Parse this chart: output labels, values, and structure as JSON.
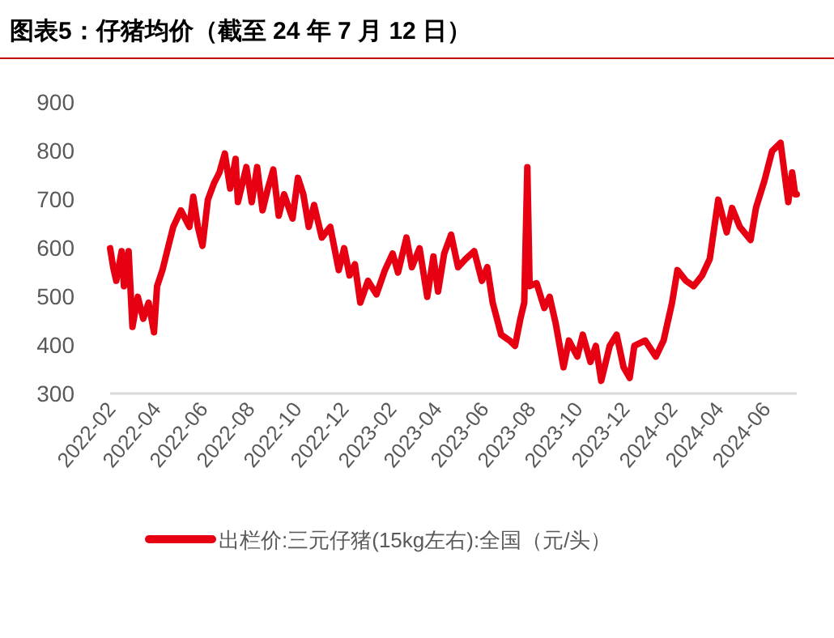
{
  "chart_data": {
    "type": "line",
    "title": "图表5：仔猪均价（截至 24 年 7 月 12 日）",
    "xlim": [
      "2022-02-01",
      "2024-07-12"
    ],
    "ylim": [
      300,
      900
    ],
    "yticks": [
      300,
      400,
      500,
      600,
      700,
      800,
      900
    ],
    "xticks": [
      "2022-02",
      "2022-04",
      "2022-06",
      "2022-08",
      "2022-10",
      "2022-12",
      "2023-02",
      "2023-04",
      "2023-06",
      "2023-08",
      "2023-10",
      "2023-12",
      "2024-02",
      "2024-04",
      "2024-06"
    ],
    "grid": false,
    "legend": "bottom",
    "marker": "none",
    "line_style": "solid",
    "series": [
      {
        "name": "出栏价:三元仔猪(15kg左右):全国（元/头）",
        "color": "#e60012",
        "x": [
          "2022-02-01",
          "2022-02-05",
          "2022-02-09",
          "2022-02-16",
          "2022-02-19",
          "2022-02-25",
          "2022-03-02",
          "2022-03-09",
          "2022-03-16",
          "2022-03-23",
          "2022-03-30",
          "2022-04-03",
          "2022-04-10",
          "2022-04-17",
          "2022-04-24",
          "2022-05-04",
          "2022-05-15",
          "2022-05-20",
          "2022-05-26",
          "2022-06-01",
          "2022-06-08",
          "2022-06-16",
          "2022-06-23",
          "2022-06-30",
          "2022-07-07",
          "2022-07-14",
          "2022-07-17",
          "2022-07-28",
          "2022-08-04",
          "2022-08-11",
          "2022-08-18",
          "2022-08-25",
          "2022-09-01",
          "2022-09-08",
          "2022-09-15",
          "2022-09-26",
          "2022-10-03",
          "2022-10-10",
          "2022-10-17",
          "2022-10-24",
          "2022-11-03",
          "2022-11-14",
          "2022-11-25",
          "2022-12-02",
          "2022-12-09",
          "2022-12-16",
          "2022-12-23",
          "2023-01-02",
          "2023-01-13",
          "2023-01-24",
          "2023-02-03",
          "2023-02-10",
          "2023-02-21",
          "2023-02-28",
          "2023-03-10",
          "2023-03-20",
          "2023-03-28",
          "2023-04-03",
          "2023-04-11",
          "2023-04-20",
          "2023-04-29",
          "2023-05-09",
          "2023-05-20",
          "2023-05-30",
          "2023-06-06",
          "2023-06-13",
          "2023-06-24",
          "2023-07-05",
          "2023-07-12",
          "2023-07-19",
          "2023-07-24",
          "2023-07-28",
          "2023-07-31",
          "2023-08-09",
          "2023-08-19",
          "2023-08-26",
          "2023-09-03",
          "2023-09-13",
          "2023-09-20",
          "2023-10-01",
          "2023-10-08",
          "2023-10-18",
          "2023-10-25",
          "2023-11-01",
          "2023-11-12",
          "2023-11-21",
          "2023-11-30",
          "2023-12-08",
          "2023-12-14",
          "2023-12-28",
          "2024-01-11",
          "2024-01-21",
          "2024-02-01",
          "2024-02-08",
          "2024-02-19",
          "2024-02-29",
          "2024-03-11",
          "2024-03-21",
          "2024-04-01",
          "2024-04-12",
          "2024-04-19",
          "2024-04-29",
          "2024-05-13",
          "2024-05-20",
          "2024-05-31",
          "2024-06-10",
          "2024-06-21",
          "2024-07-01",
          "2024-07-06",
          "2024-07-10",
          "2024-07-12"
        ],
        "values": [
          599,
          560,
          532,
          593,
          521,
          593,
          437,
          499,
          454,
          487,
          426,
          521,
          554,
          599,
          643,
          677,
          643,
          705,
          643,
          604,
          699,
          733,
          755,
          794,
          722,
          783,
          694,
          766,
          694,
          766,
          677,
          722,
          761,
          666,
          710,
          660,
          744,
          710,
          643,
          688,
          621,
          643,
          554,
          599,
          543,
          566,
          487,
          532,
          504,
          554,
          588,
          549,
          621,
          560,
          599,
          499,
          582,
          510,
          588,
          627,
          560,
          577,
          593,
          532,
          560,
          487,
          421,
          409,
          398,
          454,
          487,
          766,
          521,
          527,
          476,
          499,
          443,
          354,
          409,
          376,
          421,
          365,
          398,
          326,
          398,
          421,
          354,
          332,
          398,
          409,
          376,
          409,
          487,
          554,
          532,
          521,
          543,
          577,
          699,
          632,
          682,
          643,
          616,
          682,
          738,
          799,
          816,
          694,
          755,
          710,
          710
        ]
      }
    ]
  }
}
